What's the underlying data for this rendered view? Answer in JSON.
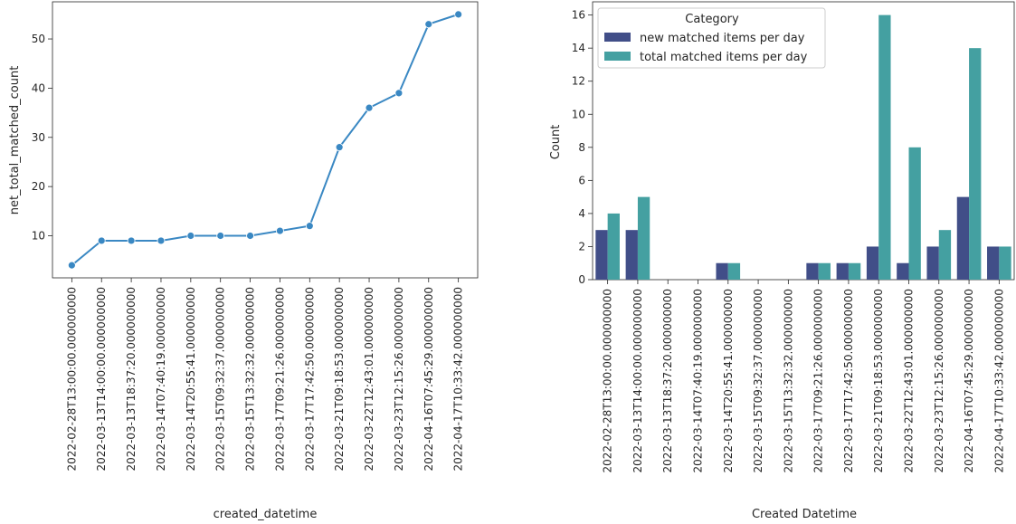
{
  "chart_data": [
    {
      "type": "line",
      "xlabel": "created_datetime",
      "ylabel": "net_total_matched_count",
      "x": [
        "2022-02-28T13:00:00.000000000",
        "2022-03-13T14:00:00.000000000",
        "2022-03-13T18:37:20.000000000",
        "2022-03-14T07:40:19.000000000",
        "2022-03-14T20:55:41.000000000",
        "2022-03-15T09:32:37.000000000",
        "2022-03-15T13:32:32.000000000",
        "2022-03-17T09:21:26.000000000",
        "2022-03-17T17:42:50.000000000",
        "2022-03-21T09:18:53.000000000",
        "2022-03-22T12:43:01.000000000",
        "2022-03-23T12:15:26.000000000",
        "2022-04-16T07:45:29.000000000",
        "2022-04-17T10:33:42.000000000"
      ],
      "values": [
        4,
        9,
        9,
        9,
        10,
        10,
        10,
        11,
        12,
        28,
        36,
        39,
        53,
        55
      ],
      "yticks": [
        10,
        20,
        30,
        40,
        50
      ],
      "ylim": [
        1.45,
        57.55
      ],
      "grid": false,
      "color": "#3a88c3"
    },
    {
      "type": "bar",
      "xlabel": "Created Datetime",
      "ylabel": "Count",
      "categories": [
        "2022-02-28T13:00:00.000000000",
        "2022-03-13T14:00:00.000000000",
        "2022-03-13T18:37:20.000000000",
        "2022-03-14T07:40:19.000000000",
        "2022-03-14T20:55:41.000000000",
        "2022-03-15T09:32:37.000000000",
        "2022-03-15T13:32:32.000000000",
        "2022-03-17T09:21:26.000000000",
        "2022-03-17T17:42:50.000000000",
        "2022-03-21T09:18:53.000000000",
        "2022-03-22T12:43:01.000000000",
        "2022-03-23T12:15:26.000000000",
        "2022-04-16T07:45:29.000000000",
        "2022-04-17T10:33:42.000000000"
      ],
      "series": [
        {
          "name": "new matched items per day",
          "values": [
            3,
            3,
            0,
            0,
            1,
            0,
            0,
            1,
            1,
            2,
            1,
            2,
            5,
            2
          ],
          "color": "#414e88"
        },
        {
          "name": "total matched items per day",
          "values": [
            4,
            5,
            0,
            0,
            1,
            0,
            0,
            1,
            1,
            16,
            8,
            3,
            14,
            2
          ],
          "color": "#44a0a1"
        }
      ],
      "legend_title": "Category",
      "legend_position": "top-left",
      "yticks": [
        0,
        2,
        4,
        6,
        8,
        10,
        12,
        14,
        16
      ],
      "ylim": [
        0,
        16.8
      ],
      "grid": false
    }
  ]
}
